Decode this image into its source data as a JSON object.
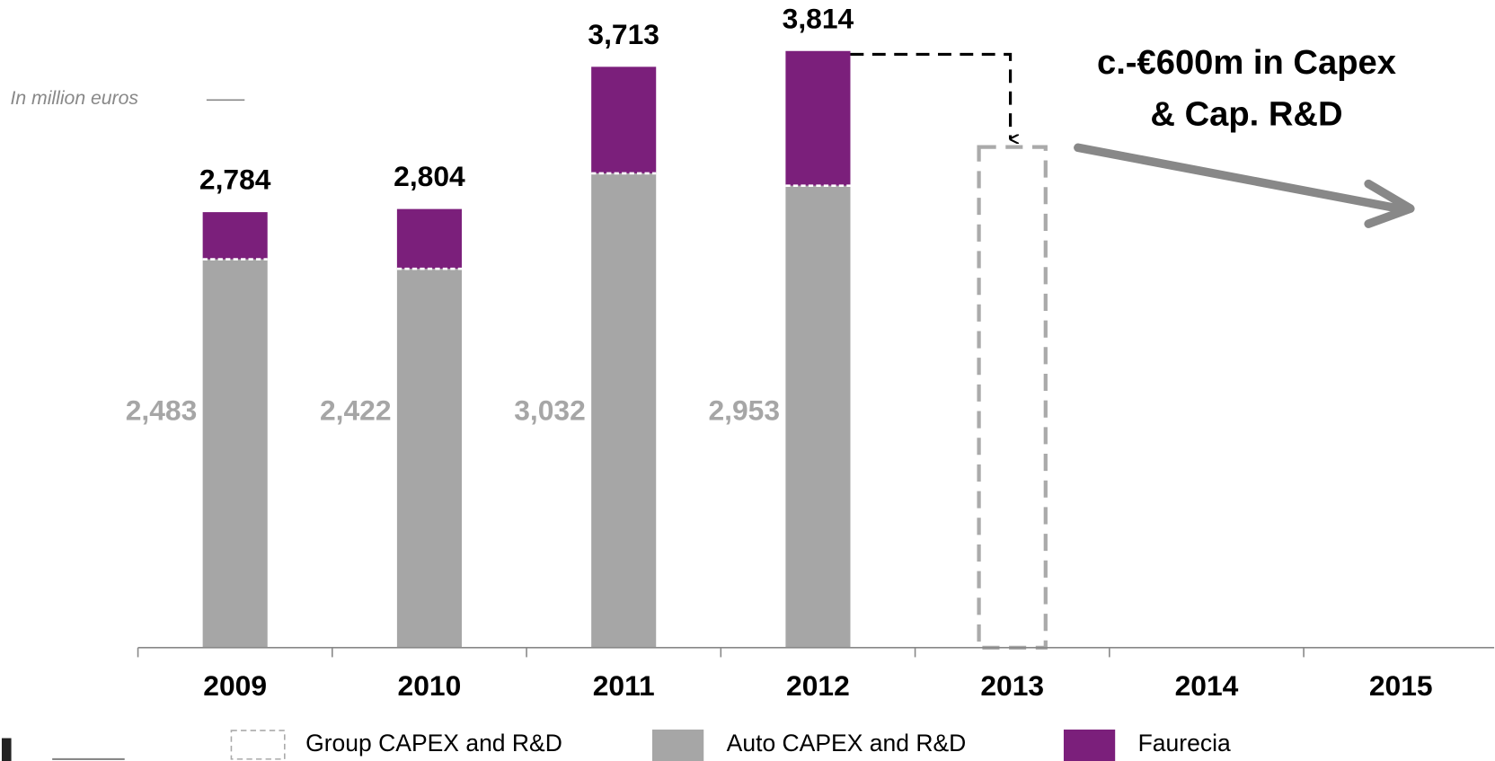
{
  "chart_data": {
    "type": "stacked_bar",
    "subtitle": "In million euros",
    "annotation": [
      "c.-€600m in Capex",
      "& Cap. R&D"
    ],
    "categories": [
      "2009",
      "2010",
      "2011",
      "2012",
      "2013",
      "2014",
      "2015"
    ],
    "ylim": [
      0,
      4000
    ],
    "series": [
      {
        "name": "Auto CAPEX and R&D",
        "color": "#a6a6a6",
        "values": [
          2483,
          2422,
          3032,
          2953,
          null,
          null,
          null
        ],
        "value_labels": [
          "2,483",
          "2,422",
          "3,032",
          "2,953",
          null,
          null,
          null
        ]
      },
      {
        "name": "Faurecia",
        "color": "#7b1f7b",
        "values": [
          301,
          382,
          681,
          861,
          null,
          null,
          null
        ]
      },
      {
        "name": "Group CAPEX and R&D",
        "color": "#aaaaaa",
        "values": [
          null,
          null,
          null,
          null,
          3200,
          null,
          null
        ]
      }
    ],
    "total_labels": [
      "2,784",
      "2,804",
      "3,713",
      "3,814",
      null,
      null,
      null
    ]
  }
}
